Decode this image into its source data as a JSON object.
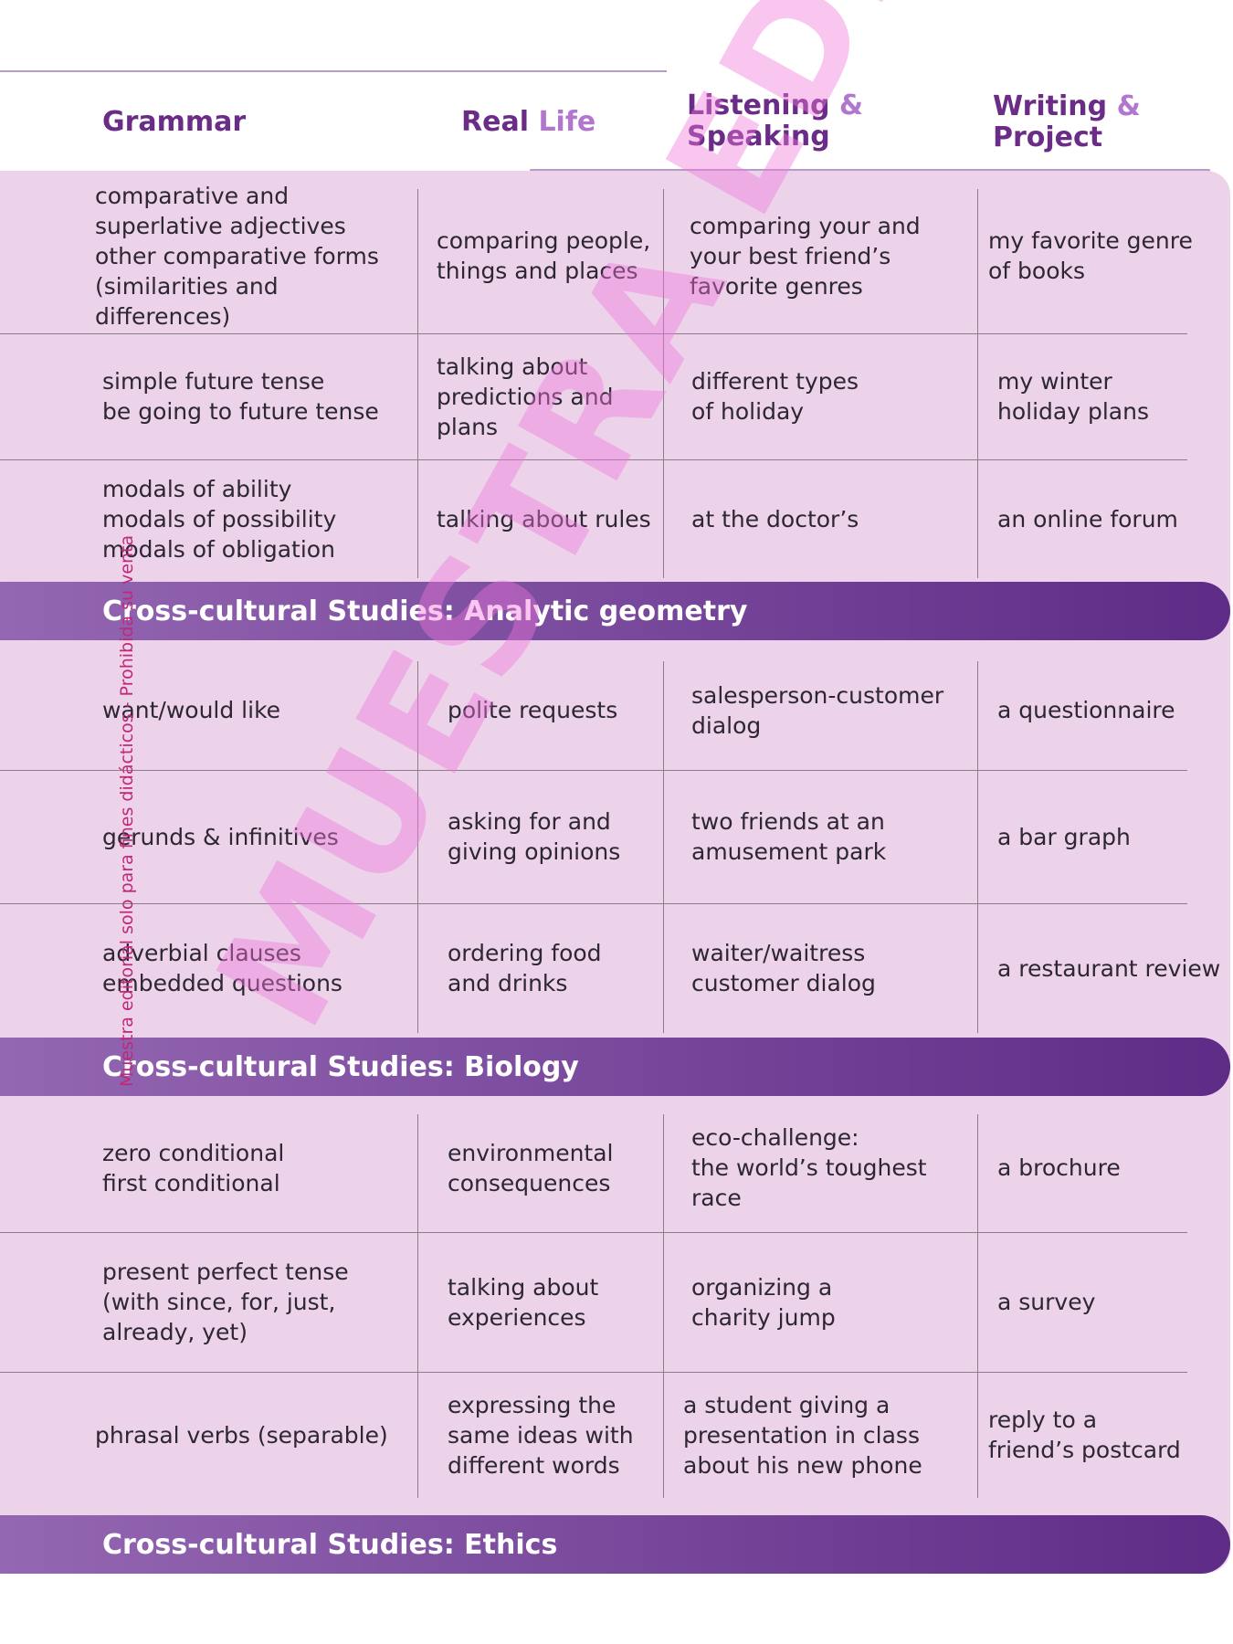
{
  "header": {
    "col1": "Grammar",
    "col2_dark": "Real",
    "col2_light": "Life",
    "col3_dark_1": "Listening",
    "col3_amp": "&",
    "col3_dark_2": "Speaking",
    "col4_dark_1": "Writing",
    "col4_amp": "&",
    "col4_dark_2": "Project"
  },
  "sections": [
    {
      "rows": [
        {
          "grammar": "comparative and\nsuperlative adjectives\nother comparative forms\n(similarities and differences)",
          "real_life": "comparing people,\nthings and places",
          "listening": "comparing your and\nyour best friend’s\nfavorite genres",
          "writing": "my favorite genre\nof books"
        },
        {
          "grammar": "simple future tense\nbe going to future tense",
          "real_life": "talking about\npredictions and\nplans",
          "listening": "different types\nof holiday",
          "writing": "my winter\nholiday plans"
        },
        {
          "grammar": "modals of ability\nmodals of possibility\nmodals of obligation",
          "real_life": "talking about rules",
          "listening": "at the doctor’s",
          "writing": "an online forum"
        }
      ],
      "banner": "Cross-cultural Studies: Analytic geometry"
    },
    {
      "rows": [
        {
          "grammar": "want/would like",
          "real_life": "polite requests",
          "listening": "salesperson-customer\ndialog",
          "writing": "a questionnaire"
        },
        {
          "grammar": "gerunds & infinitives",
          "real_life": "asking for and\ngiving opinions",
          "listening": "two friends at an\namusement park",
          "writing": "a bar graph"
        },
        {
          "grammar": "adverbial clauses\nembedded questions",
          "real_life": "ordering food\nand drinks",
          "listening": "waiter/waitress\ncustomer dialog",
          "writing": "a restaurant review"
        }
      ],
      "banner": "Cross-cultural Studies: Biology"
    },
    {
      "rows": [
        {
          "grammar": "zero conditional\nfirst conditional",
          "real_life": "environmental\nconsequences",
          "listening": "eco-challenge:\nthe world’s toughest\nrace",
          "writing": "a brochure"
        },
        {
          "grammar": "present perfect tense\n(with since, for, just,\nalready, yet)",
          "real_life": "talking about\nexperiences",
          "listening": "organizing a\ncharity jump",
          "writing": "a survey"
        },
        {
          "grammar": "phrasal verbs (separable)",
          "real_life": "expressing the\nsame ideas with\ndifferent words",
          "listening": "a student giving a\npresentation in class\nabout his new phone",
          "writing": "reply to a\nfriend’s postcard"
        }
      ],
      "banner": "Cross-cultural Studies: Ethics"
    }
  ],
  "watermark": "MUESTRA EDITORIAL",
  "side_note": "Muestra editorial solo para fines didácticos - Prohibida su venta",
  "colors": {
    "panel": "#ecd3ea",
    "header_dark": "#6a2c86",
    "header_light": "#b276cf",
    "banner_start": "#9467b2",
    "banner_end": "#5e2b86",
    "watermark": "#f078dc"
  }
}
